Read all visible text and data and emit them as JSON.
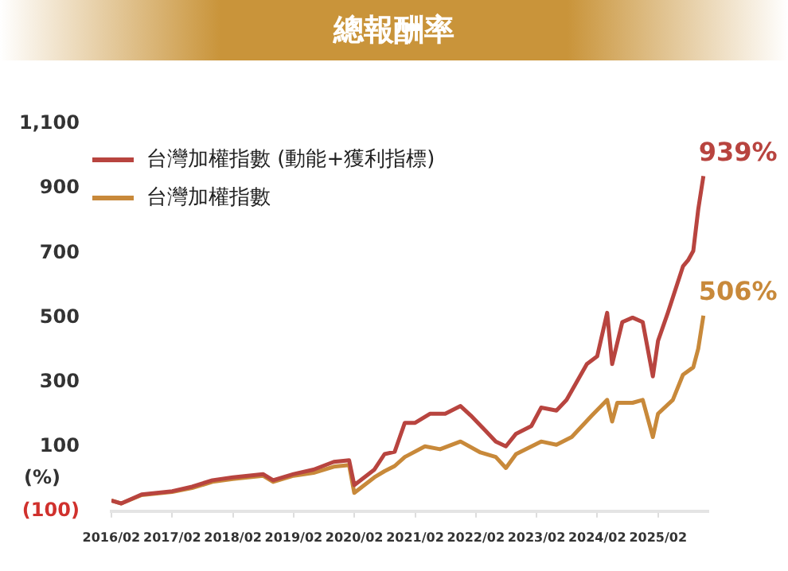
{
  "chart_data": {
    "type": "line",
    "title": "總報酬率",
    "series": [
      {
        "name": "台灣加權指數 (動能+獲利指標)",
        "color": "#b8443f",
        "x": [
          "2016-02",
          "2016-04",
          "2016-08",
          "2017-02",
          "2017-06",
          "2017-10",
          "2018-02",
          "2018-08",
          "2018-10",
          "2019-02",
          "2019-06",
          "2019-10",
          "2020-01",
          "2020-02",
          "2020-06",
          "2020-08",
          "2020-10",
          "2020-11",
          "2020-12",
          "2021-02",
          "2021-05",
          "2021-08",
          "2021-11",
          "2022-01",
          "2022-04",
          "2022-06",
          "2022-08",
          "2022-10",
          "2023-01",
          "2023-03",
          "2023-06",
          "2023-08",
          "2023-12",
          "2024-02",
          "2024-04",
          "2024-05",
          "2024-07",
          "2024-09",
          "2024-11",
          "2025-01",
          "2025-02",
          "2025-04",
          "2025-07",
          "2025-08",
          "2025-09",
          "2025-10",
          "2025-11"
        ],
        "values": [
          -67,
          -76,
          -48,
          -38,
          -24,
          -4,
          5,
          15,
          -4,
          15,
          29,
          53,
          58,
          -19,
          29,
          77,
          84,
          130,
          174,
          174,
          202,
          202,
          226,
          197,
          149,
          116,
          101,
          140,
          164,
          221,
          212,
          245,
          356,
          380,
          515,
          356,
          486,
          500,
          486,
          318,
          428,
          515,
          659,
          678,
          707,
          836,
          939
        ]
      },
      {
        "name": "台灣加權指數",
        "color": "#c8893a",
        "x": [
          "2016-02",
          "2016-04",
          "2016-08",
          "2017-02",
          "2017-06",
          "2017-10",
          "2018-02",
          "2018-08",
          "2018-10",
          "2019-02",
          "2019-06",
          "2019-10",
          "2020-01",
          "2020-02",
          "2020-06",
          "2020-08",
          "2020-10",
          "2020-12",
          "2021-04",
          "2021-07",
          "2021-11",
          "2022-03",
          "2022-06",
          "2022-08",
          "2022-10",
          "2023-03",
          "2023-06",
          "2023-09",
          "2024-01",
          "2024-04",
          "2024-05",
          "2024-06",
          "2024-09",
          "2024-11",
          "2025-01",
          "2025-02",
          "2025-05",
          "2025-07",
          "2025-09",
          "2025-10",
          "2025-11"
        ],
        "values": [
          -67,
          -76,
          -50,
          -40,
          -28,
          -9,
          0,
          10,
          -9,
          10,
          19,
          38,
          43,
          -43,
          5,
          24,
          40,
          68,
          101,
          92,
          116,
          82,
          68,
          34,
          77,
          116,
          106,
          130,
          197,
          245,
          178,
          236,
          236,
          245,
          130,
          202,
          245,
          323,
          346,
          404,
          506
        ]
      }
    ],
    "xlim": [
      "2016-02",
      "2025-12"
    ],
    "xticks": [
      {
        "value": "2016-02",
        "label": "2016/02"
      },
      {
        "value": "2017-02",
        "label": "2017/02"
      },
      {
        "value": "2018-02",
        "label": "2018/02"
      },
      {
        "value": "2019-02",
        "label": "2019/02"
      },
      {
        "value": "2020-02",
        "label": "2020/02"
      },
      {
        "value": "2021-02",
        "label": "2021/02"
      },
      {
        "value": "2022-02",
        "label": "2022/02"
      },
      {
        "value": "2023-02",
        "label": "2023/02"
      },
      {
        "value": "2024-02",
        "label": "2024/02"
      },
      {
        "value": "2025-02",
        "label": "2025/02"
      }
    ],
    "ylim": [
      -100,
      1100
    ],
    "yticks": [
      {
        "value": -100,
        "label": "(100)"
      },
      100,
      300,
      500,
      700,
      900,
      {
        "value": 1100,
        "label": "1,100"
      }
    ],
    "annotations": [
      "(%)",
      {
        "text": "939%",
        "x": "2025-11",
        "y": 939
      },
      {
        "text": "506%",
        "x": "2025-11",
        "y": 506
      }
    ],
    "legend": "top left",
    "grid": false,
    "marker": "none",
    "line_style": "solid"
  }
}
